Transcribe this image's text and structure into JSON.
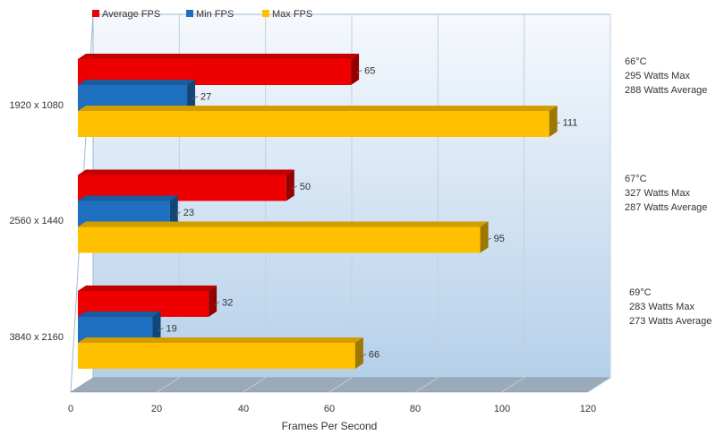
{
  "chart_data": {
    "type": "bar",
    "orientation": "horizontal",
    "title": "",
    "xlabel": "Frames Per Second",
    "ylabel": "",
    "xlim": [
      0,
      120
    ],
    "ticks": [
      "0",
      "20",
      "40",
      "60",
      "80",
      "100",
      "120"
    ],
    "grid": true,
    "legend_position": "top-left",
    "categories": [
      "1920 x 1080",
      "2560 x 1440",
      "3840 x 2160"
    ],
    "series": [
      {
        "name": "Average FPS",
        "color": "#ee0000",
        "values": [
          65,
          50,
          32
        ]
      },
      {
        "name": "Min FPS",
        "color": "#1f6fc0",
        "values": [
          27,
          23,
          19
        ]
      },
      {
        "name": "Max FPS",
        "color": "#ffc000",
        "values": [
          111,
          95,
          66
        ]
      }
    ],
    "annotations": [
      [
        "66°C",
        "295 Watts Max",
        "288 Watts Average"
      ],
      [
        "67°C",
        "327 Watts Max",
        "287 Watts Average"
      ],
      [
        "69°C",
        "283 Watts Max",
        "273 Watts Average"
      ]
    ]
  }
}
